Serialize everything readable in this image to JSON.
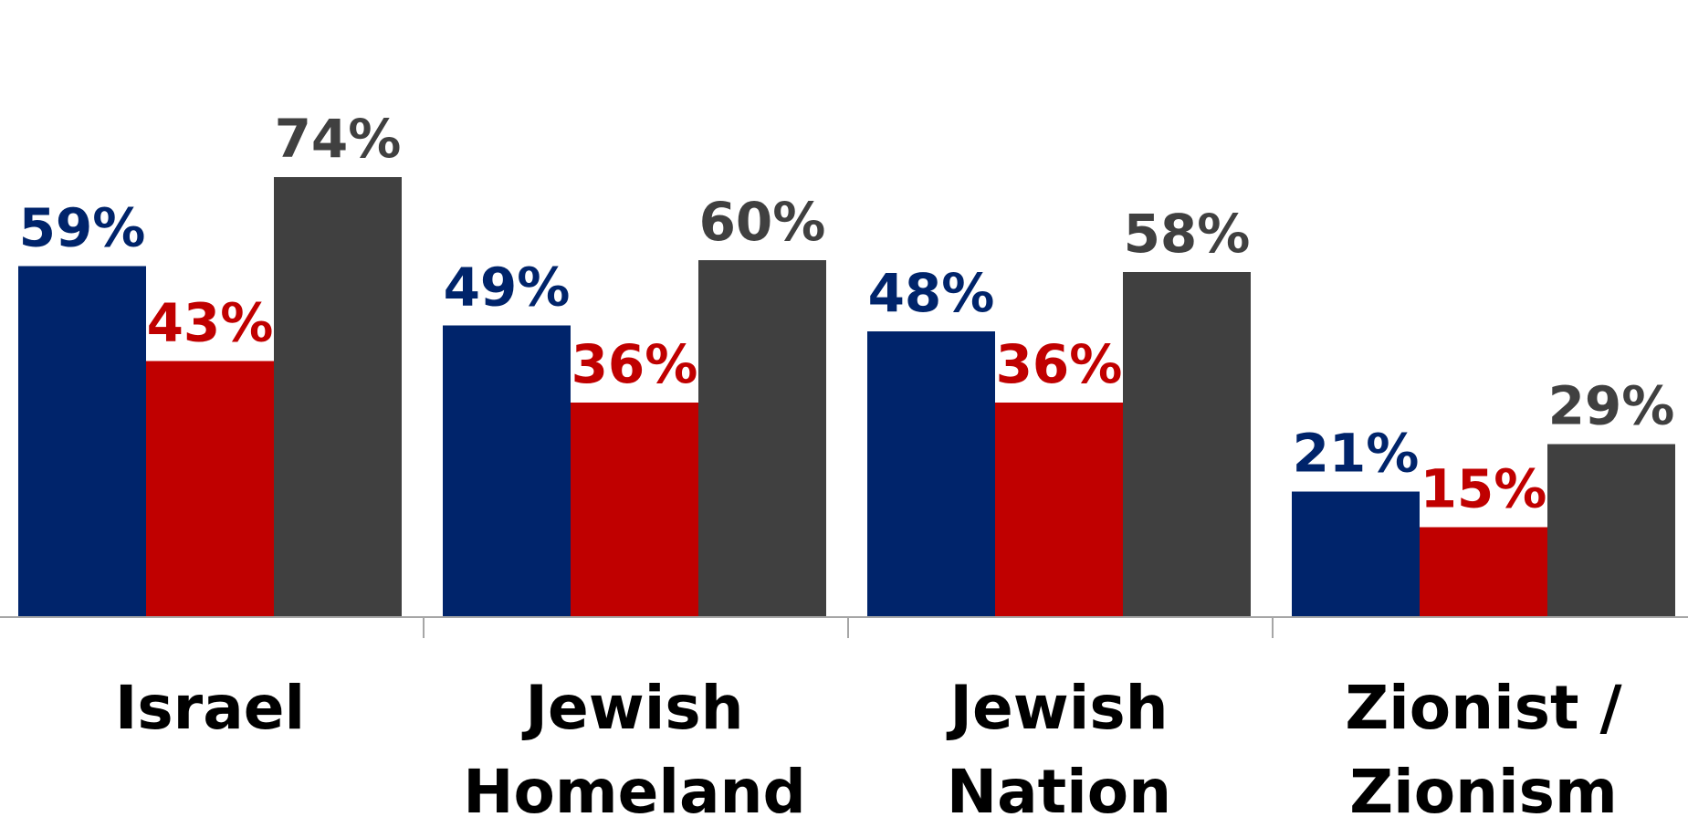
{
  "chart_data": {
    "type": "bar",
    "categories": [
      [
        "Israel"
      ],
      [
        "Jewish",
        "Homeland"
      ],
      [
        "Jewish",
        "Nation"
      ],
      [
        "Zionist /",
        "Zionism"
      ]
    ],
    "series": [
      {
        "values": [
          59,
          49,
          48,
          21
        ],
        "color": "#00246b"
      },
      {
        "values": [
          43,
          36,
          36,
          15
        ],
        "color": "#c00000"
      },
      {
        "values": [
          74,
          60,
          58,
          29
        ],
        "color": "#404040"
      }
    ],
    "value_suffix": "%",
    "ylim": [
      0,
      100
    ],
    "grid": false,
    "legend": "none",
    "axis_color": "#a6a6a6"
  }
}
